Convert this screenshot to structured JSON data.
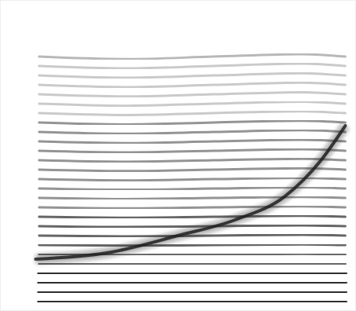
{
  "chart_data": {
    "type": "spectrogram",
    "xlim": [
      0,
      1
    ],
    "ylim": [
      0,
      34
    ],
    "tick_labels": false,
    "grid": false,
    "x": [
      0.11,
      0.35,
      0.6,
      0.85,
      0.97
    ],
    "series": [
      {
        "color": "#1a1a1a",
        "values": [
          1.03,
          1.02,
          1.03,
          1.04,
          1.03
        ]
      },
      {
        "color": "#1a1a1a",
        "values": [
          2.06,
          2.04,
          2.06,
          2.08,
          2.06
        ]
      },
      {
        "color": "#1a1a1a",
        "values": [
          3.09,
          3.06,
          3.09,
          3.12,
          3.09
        ]
      },
      {
        "color": "#1a1a1a",
        "values": [
          4.12,
          4.08,
          4.12,
          4.16,
          4.12
        ]
      },
      {
        "color": "#555555",
        "values": [
          5.15,
          5.1,
          5.15,
          5.2,
          5.15
        ]
      },
      {
        "color": "#555555",
        "values": [
          6.18,
          6.12,
          6.18,
          6.24,
          6.18
        ]
      },
      {
        "color": "#555555",
        "values": [
          7.21,
          7.14,
          7.21,
          7.28,
          7.21
        ]
      },
      {
        "color": "#555555",
        "values": [
          8.24,
          8.16,
          8.24,
          8.32,
          8.24
        ]
      },
      {
        "color": "#555555",
        "values": [
          9.27,
          9.18,
          9.27,
          9.36,
          9.27
        ]
      },
      {
        "color": "#555555",
        "values": [
          10.3,
          10.2,
          10.3,
          10.4,
          10.3
        ]
      },
      {
        "color": "#888888",
        "values": [
          11.33,
          11.22,
          11.33,
          11.44,
          11.33
        ]
      },
      {
        "color": "#888888",
        "values": [
          12.36,
          12.24,
          12.36,
          12.48,
          12.36
        ]
      },
      {
        "color": "#888888",
        "values": [
          13.39,
          13.26,
          13.39,
          13.52,
          13.39
        ]
      },
      {
        "color": "#888888",
        "values": [
          14.42,
          14.28,
          14.42,
          14.56,
          14.42
        ]
      },
      {
        "color": "#888888",
        "values": [
          15.45,
          15.3,
          15.45,
          15.6,
          15.45
        ]
      },
      {
        "color": "#888888",
        "values": [
          16.48,
          16.32,
          16.48,
          16.64,
          16.48
        ]
      },
      {
        "color": "#888888",
        "values": [
          17.51,
          17.34,
          17.51,
          17.68,
          17.51
        ]
      },
      {
        "color": "#888888",
        "values": [
          18.54,
          18.36,
          18.54,
          18.72,
          18.54
        ]
      },
      {
        "color": "#888888",
        "values": [
          19.57,
          19.38,
          19.57,
          19.76,
          19.57
        ]
      },
      {
        "color": "#888888",
        "values": [
          20.6,
          20.4,
          20.6,
          20.8,
          20.6
        ]
      },
      {
        "color": "#c4c4c4",
        "values": [
          21.63,
          21.42,
          21.63,
          21.84,
          21.63
        ]
      },
      {
        "color": "#c4c4c4",
        "values": [
          22.66,
          22.44,
          22.66,
          22.88,
          22.66
        ]
      },
      {
        "color": "#c4c4c4",
        "values": [
          23.69,
          23.46,
          23.69,
          23.92,
          23.69
        ]
      },
      {
        "color": "#c4c4c4",
        "values": [
          24.72,
          24.48,
          24.72,
          24.96,
          24.72
        ]
      },
      {
        "color": "#c4c4c4",
        "values": [
          25.75,
          25.5,
          25.75,
          26.0,
          25.75
        ]
      },
      {
        "color": "#c4c4c4",
        "values": [
          26.78,
          26.52,
          26.78,
          27.04,
          26.78
        ]
      },
      {
        "color": "#b0b0b0",
        "values": [
          27.81,
          27.54,
          27.81,
          28.08,
          27.81
        ]
      },
      {
        "type": "band",
        "color": "#222222",
        "x": [
          0.1,
          0.3,
          0.5,
          0.66,
          0.8,
          0.9,
          0.97
        ],
        "values": [
          5.67,
          6.35,
          8.24,
          9.96,
          12.53,
          16.4,
          20.26
        ]
      }
    ]
  }
}
